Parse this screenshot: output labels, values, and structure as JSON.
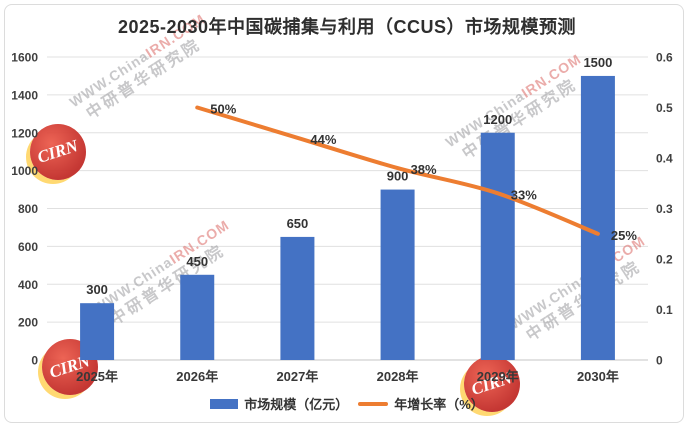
{
  "title": "2025-2030年中国碳捕集与利用（CCUS）市场规模预测",
  "chart_data": {
    "type": "combo-bar-line",
    "title": "2025-2030年中国碳捕集与利用（CCUS）市场规模预测",
    "categories": [
      "2025年",
      "2026年",
      "2027年",
      "2028年",
      "2029年",
      "2030年"
    ],
    "series": [
      {
        "name": "市场规模（亿元）",
        "type": "bar",
        "axis": "left",
        "color": "#4472C4",
        "values": [
          300,
          450,
          650,
          900,
          1200,
          1500
        ],
        "data_labels": [
          "300",
          "450",
          "650",
          "900",
          "1200",
          "1500"
        ]
      },
      {
        "name": "年增长率（%）",
        "type": "line",
        "axis": "right",
        "color": "#ED7D31",
        "values": [
          null,
          0.5,
          0.44,
          0.38,
          0.33,
          0.25
        ],
        "data_labels": [
          "",
          "50%",
          "44%",
          "38%",
          "33%",
          "25%"
        ]
      }
    ],
    "left_axis": {
      "min": 0,
      "max": 1600,
      "step": 200,
      "ticks": [
        "0",
        "200",
        "400",
        "600",
        "800",
        "1000",
        "1200",
        "1400",
        "1600"
      ]
    },
    "right_axis": {
      "min": 0,
      "max": 0.6,
      "step": 0.1,
      "ticks": [
        "0",
        "0.1",
        "0.2",
        "0.3",
        "0.4",
        "0.5",
        "0.6"
      ]
    },
    "grid": true,
    "legend_position": "bottom"
  },
  "watermark": {
    "site_prefix": "WWW.China",
    "site_suffix": "IRN.COM",
    "cn_name": "中研普华研究院",
    "logo_text": "CIRN"
  }
}
